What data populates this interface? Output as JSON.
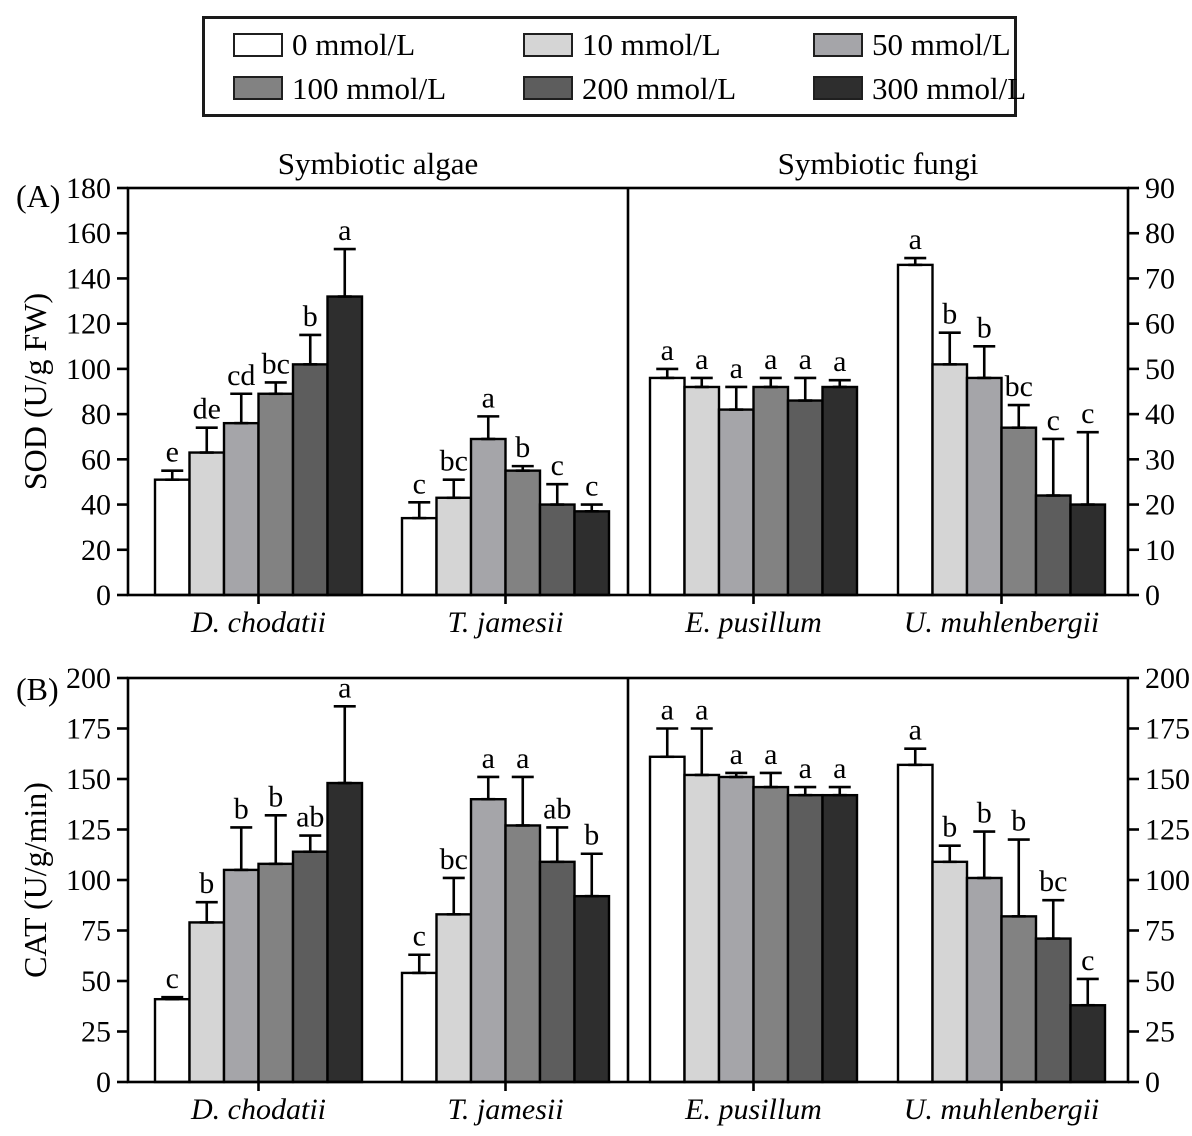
{
  "legend": {
    "items": [
      {
        "label": "0 mmol/L",
        "color": "#ffffff"
      },
      {
        "label": "10 mmol/L",
        "color": "#d5d5d5"
      },
      {
        "label": "50 mmol/L",
        "color": "#a5a5a9"
      },
      {
        "label": "100 mmol/L",
        "color": "#828282"
      },
      {
        "label": "200 mmol/L",
        "color": "#5d5d5d"
      },
      {
        "label": "300 mmol/L",
        "color": "#2e2e2e"
      }
    ]
  },
  "chart_data": [
    {
      "type": "bar",
      "panel_label": "(A)",
      "ylabel": "SOD (U/g FW)",
      "section_titles": [
        "Symbiotic algae",
        "Symbiotic fungi"
      ],
      "left_axis": {
        "min": 0,
        "max": 180,
        "step": 20
      },
      "right_axis": {
        "min": 0,
        "max": 90,
        "step": 10
      },
      "treatments": [
        "0 mmol/L",
        "10 mmol/L",
        "50 mmol/L",
        "100 mmol/L",
        "200 mmol/L",
        "300 mmol/L"
      ],
      "groups": [
        {
          "species": "D. chodatii",
          "axis": "left",
          "values": [
            51,
            63,
            76,
            89,
            102,
            132
          ],
          "errors": [
            4,
            11,
            13,
            5,
            13,
            21
          ],
          "letters": [
            "e",
            "de",
            "cd",
            "bc",
            "b",
            "a"
          ]
        },
        {
          "species": "T. jamesii",
          "axis": "left",
          "values": [
            34,
            43,
            69,
            55,
            40,
            37
          ],
          "errors": [
            7,
            8,
            10,
            2,
            9,
            3
          ],
          "letters": [
            "c",
            "bc",
            "a",
            "b",
            "c",
            "c"
          ]
        },
        {
          "species": "E. pusillum",
          "axis": "right",
          "values": [
            48,
            46,
            41,
            46,
            43,
            46
          ],
          "errors": [
            2,
            2,
            5,
            2,
            5,
            1.5
          ],
          "letters": [
            "a",
            "a",
            "a",
            "a",
            "a",
            "a"
          ]
        },
        {
          "species": "U. muhlenbergii",
          "axis": "right",
          "values": [
            73,
            51,
            48,
            37,
            22,
            20
          ],
          "errors": [
            1.5,
            7,
            7,
            5,
            12.5,
            16
          ],
          "letters": [
            "a",
            "b",
            "b",
            "bc",
            "c",
            "c"
          ]
        }
      ]
    },
    {
      "type": "bar",
      "panel_label": "(B)",
      "ylabel": "CAT (U/g/min)",
      "section_titles": null,
      "left_axis": {
        "min": 0,
        "max": 200,
        "step": 25
      },
      "right_axis": {
        "min": 0,
        "max": 200,
        "step": 25
      },
      "treatments": [
        "0 mmol/L",
        "10 mmol/L",
        "50 mmol/L",
        "100 mmol/L",
        "200 mmol/L",
        "300 mmol/L"
      ],
      "groups": [
        {
          "species": "D. chodatii",
          "axis": "left",
          "values": [
            41,
            79,
            105,
            108,
            114,
            148
          ],
          "errors": [
            1,
            10,
            21,
            24,
            8,
            38
          ],
          "letters": [
            "c",
            "b",
            "b",
            "b",
            "ab",
            "a"
          ]
        },
        {
          "species": "T. jamesii",
          "axis": "left",
          "values": [
            54,
            83,
            140,
            127,
            109,
            92
          ],
          "errors": [
            9,
            18,
            11,
            24,
            17,
            21
          ],
          "letters": [
            "c",
            "bc",
            "a",
            "a",
            "ab",
            "b"
          ]
        },
        {
          "species": "E. pusillum",
          "axis": "right",
          "values": [
            161,
            152,
            151,
            146,
            142,
            142
          ],
          "errors": [
            14,
            23,
            2,
            7,
            4,
            4
          ],
          "letters": [
            "a",
            "a",
            "a",
            "a",
            "a",
            "a"
          ]
        },
        {
          "species": "U. muhlenbergii",
          "axis": "right",
          "values": [
            157,
            109,
            101,
            82,
            71,
            38
          ],
          "errors": [
            8,
            8,
            23,
            38,
            19,
            13
          ],
          "letters": [
            "a",
            "b",
            "b",
            "b",
            "bc",
            "c"
          ]
        }
      ]
    }
  ]
}
